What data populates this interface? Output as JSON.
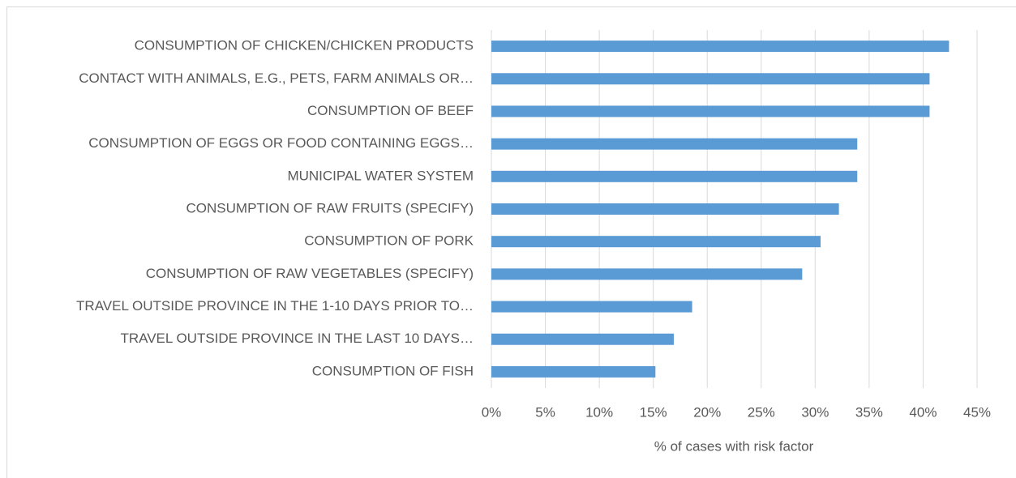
{
  "chart_data": {
    "type": "barh",
    "x_label": "% of cases with risk factor",
    "categories": [
      "CONSUMPTION OF CHICKEN/CHICKEN PRODUCTS",
      "CONTACT WITH ANIMALS, E.G., PETS, FARM ANIMALS OR…",
      "CONSUMPTION OF BEEF",
      "CONSUMPTION OF EGGS OR FOOD CONTAINING EGGS…",
      "MUNICIPAL WATER SYSTEM",
      "CONSUMPTION OF RAW FRUITS (SPECIFY)",
      "CONSUMPTION OF PORK",
      "CONSUMPTION OF RAW VEGETABLES (SPECIFY)",
      "TRAVEL OUTSIDE PROVINCE IN THE 1-10 DAYS PRIOR TO…",
      "TRAVEL OUTSIDE PROVINCE IN THE LAST 10 DAYS…",
      "CONSUMPTION OF FISH"
    ],
    "values": [
      42.4,
      40.6,
      40.6,
      33.9,
      33.9,
      32.2,
      30.5,
      28.8,
      18.6,
      16.9,
      15.2
    ],
    "color": "#5b9bd5",
    "xlim": [
      0,
      45
    ],
    "xticks": [
      {
        "value": 0,
        "label": "0%"
      },
      {
        "value": 5,
        "label": "5%"
      },
      {
        "value": 10,
        "label": "10%"
      },
      {
        "value": 15,
        "label": "15%"
      },
      {
        "value": 20,
        "label": "20%"
      },
      {
        "value": 25,
        "label": "25%"
      },
      {
        "value": 30,
        "label": "30%"
      },
      {
        "value": 35,
        "label": "35%"
      },
      {
        "value": 40,
        "label": "40%"
      },
      {
        "value": 45,
        "label": "45%"
      }
    ],
    "grid": true
  }
}
